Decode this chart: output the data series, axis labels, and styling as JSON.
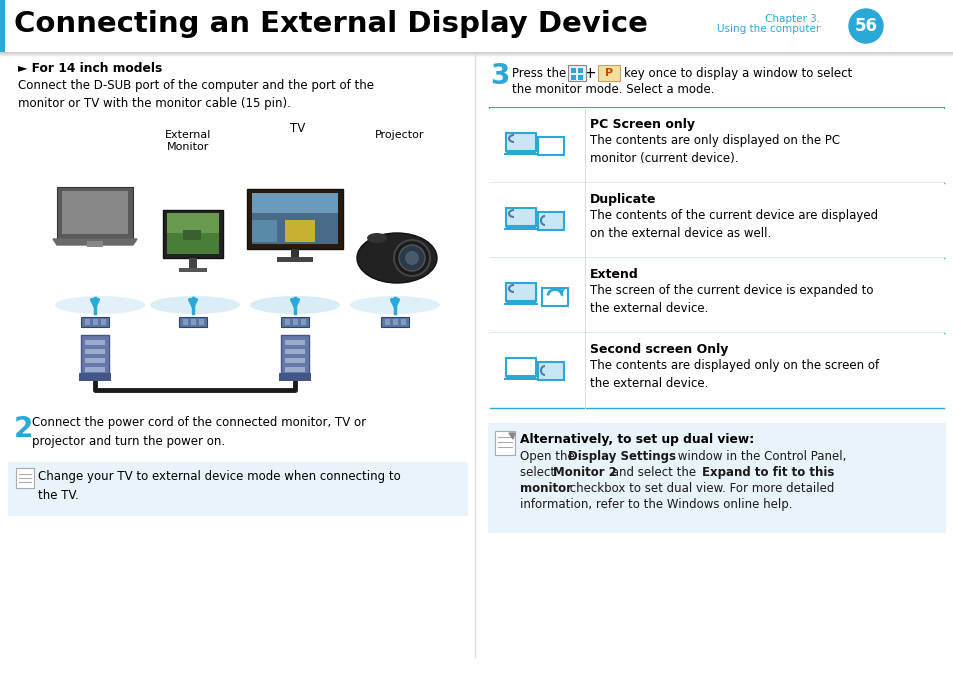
{
  "title": "Connecting an External Display Device",
  "chapter_text": "Chapter 3.\nUsing the computer",
  "page_number": "56",
  "accent_color": "#2aa8d8",
  "dark_color": "#1a1a1a",
  "note_bg": "#e8f3fa",
  "table_line_color": "#2aa8d8",
  "left": {
    "bullet": "► For 14 inch models",
    "intro": "Connect the D-SUB port of the computer and the port of the\nmonitor or TV with the monitor cable (15 pin).",
    "step2_num": "2",
    "step2_text": "Connect the power cord of the connected monitor, TV or\nprojector and turn the power on.",
    "note": "Change your TV to external device mode when connecting to\nthe TV."
  },
  "right": {
    "step3_num": "3",
    "step3_pre": "Press the",
    "step3_post": "key once to display a window to select\nthe monitor mode. Select a mode.",
    "rows": [
      {
        "title": "PC Screen only",
        "body": "The contents are only displayed on the PC\nmonitor (current device)."
      },
      {
        "title": "Duplicate",
        "body": "The contents of the current device are displayed\non the external device as well."
      },
      {
        "title": "Extend",
        "body": "The screen of the current device is expanded to\nthe external device."
      },
      {
        "title": "Second screen Only",
        "body": "The contents are displayed only on the screen of\nthe external device."
      }
    ],
    "note_title": "Alternatively, to set up dual view:",
    "note_body_parts": [
      {
        "text": "Open the ",
        "bold": false
      },
      {
        "text": "Display Settings",
        "bold": true
      },
      {
        "text": " window in the Control Panel,\nselect ",
        "bold": false
      },
      {
        "text": "Monitor 2",
        "bold": true
      },
      {
        "text": " and select the ",
        "bold": false
      },
      {
        "text": "Expand to fit to this\nmonitor",
        "bold": true
      },
      {
        "text": " checkbox to set dual view. For more detailed\ninformation, refer to the Windows online help.",
        "bold": false
      }
    ]
  }
}
